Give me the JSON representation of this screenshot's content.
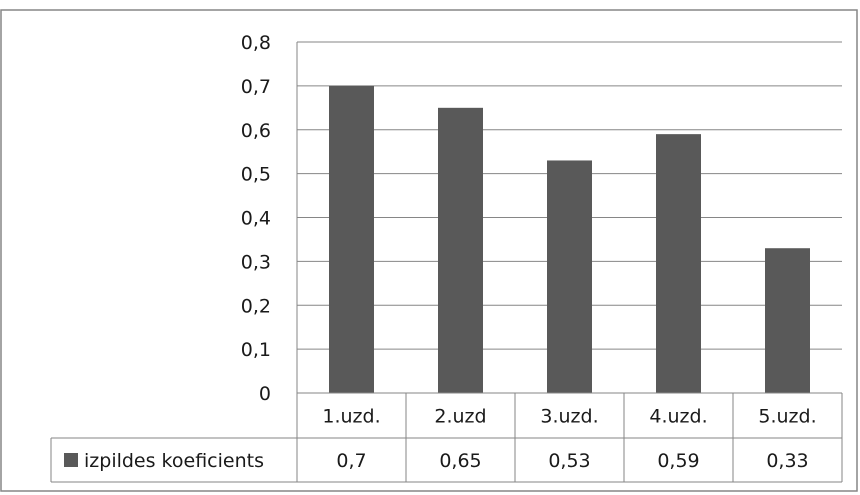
{
  "chart_data": {
    "type": "bar",
    "title": "",
    "xlabel": "",
    "ylabel": "",
    "categories": [
      "1.uzd.",
      "2.uzd",
      "3.uzd.",
      "4.uzd.",
      "5.uzd."
    ],
    "series": [
      {
        "name": "izpildes koeficients",
        "values": [
          0.7,
          0.65,
          0.53,
          0.59,
          0.33
        ],
        "value_labels": [
          "0,7",
          "0,65",
          "0,53",
          "0,59",
          "0,33"
        ],
        "color": "#595959"
      }
    ],
    "ylim": [
      0,
      0.8
    ],
    "yticks": [
      0,
      0.1,
      0.2,
      0.3,
      0.4,
      0.5,
      0.6,
      0.7,
      0.8
    ],
    "ytick_labels": [
      "0",
      "0,1",
      "0,2",
      "0,3",
      "0,4",
      "0,5",
      "0,6",
      "0,7",
      "0,8"
    ],
    "grid": true,
    "legend": "data-table",
    "colors": {
      "bar": "#595959",
      "grid": "#868686",
      "frame": "#868686"
    }
  }
}
